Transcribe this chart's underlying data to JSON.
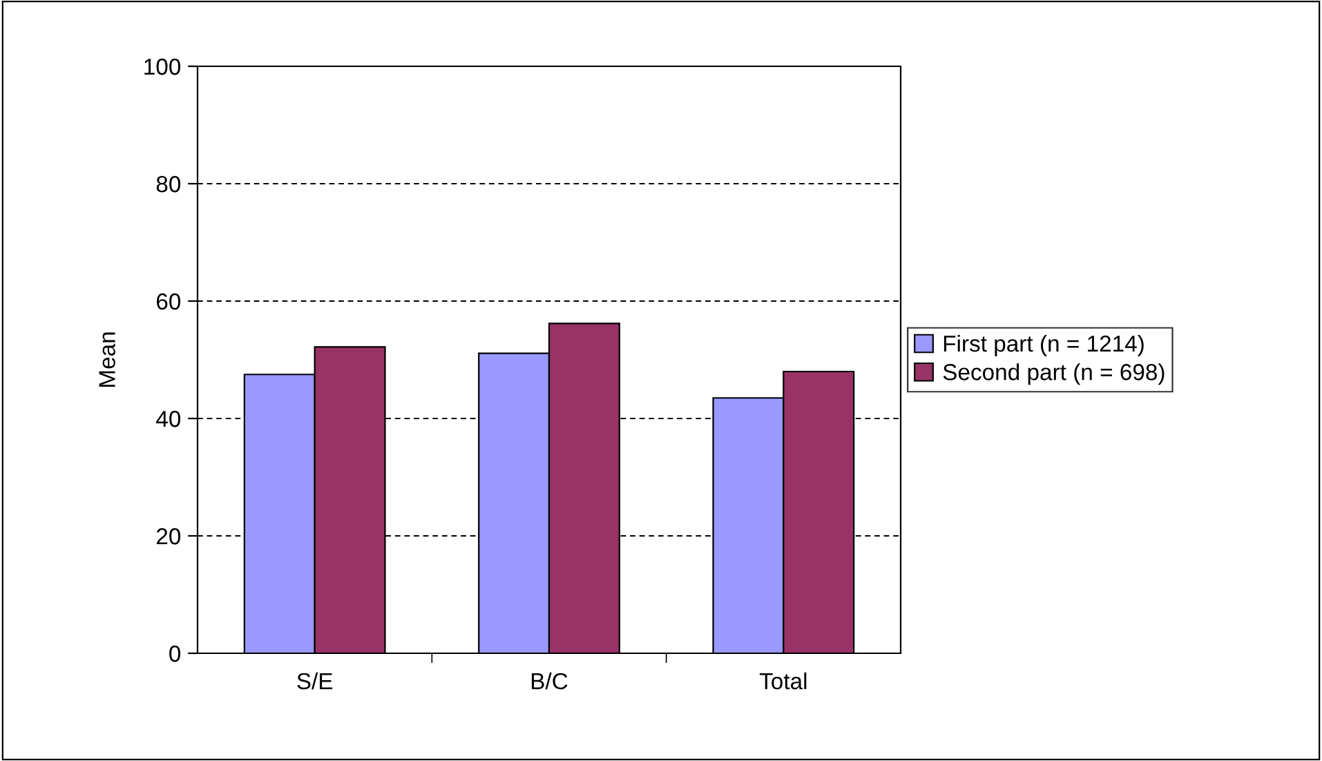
{
  "chart_data": {
    "type": "bar",
    "ylabel": "Mean",
    "categories": [
      "S/E",
      "B/C",
      "Total"
    ],
    "series": [
      {
        "name": "First part (n = 1214)",
        "color": "#9999ff",
        "values": [
          47.5,
          51.1,
          43.5
        ]
      },
      {
        "name": "Second part (n = 698)",
        "color": "#993366",
        "values": [
          52.2,
          56.2,
          48.0
        ]
      }
    ],
    "ylim": [
      0,
      100
    ],
    "yticks": [
      0,
      20,
      40,
      60,
      80,
      100
    ],
    "grid": "y",
    "legend": "right"
  }
}
